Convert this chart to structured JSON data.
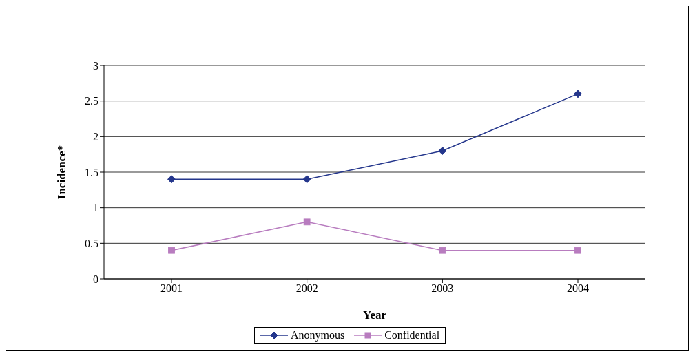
{
  "chart_data": {
    "type": "line",
    "xlabel": "Year",
    "ylabel": "Incidence*",
    "categories": [
      "2001",
      "2002",
      "2003",
      "2004"
    ],
    "series": [
      {
        "name": "Anonymous",
        "color": "#24368c",
        "marker": "diamond",
        "values": [
          1.4,
          1.4,
          1.8,
          2.6
        ]
      },
      {
        "name": "Confidential",
        "color": "#b87cbf",
        "marker": "square",
        "values": [
          0.4,
          0.8,
          0.4,
          0.4
        ]
      }
    ],
    "ylim": [
      0,
      3
    ],
    "yticks": [
      0,
      0.5,
      1,
      1.5,
      2,
      2.5,
      3
    ],
    "grid": "y",
    "legend": "bottom",
    "line_style": "solid"
  }
}
